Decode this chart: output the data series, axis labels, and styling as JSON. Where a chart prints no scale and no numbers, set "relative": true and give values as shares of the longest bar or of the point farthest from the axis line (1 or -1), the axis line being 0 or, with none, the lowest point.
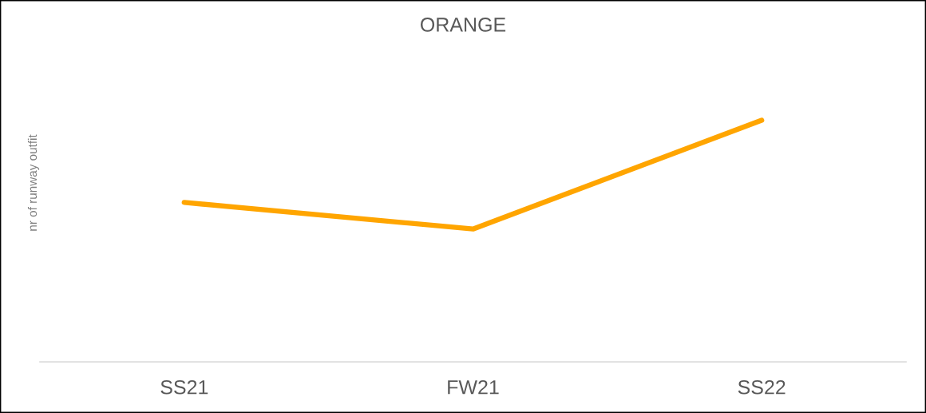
{
  "chart_data": {
    "type": "line",
    "title": "ORANGE",
    "ylabel": "nr of runway outfit",
    "categories": [
      "SS21",
      "FW21",
      "SS22"
    ],
    "relative": true,
    "series": [
      {
        "color": "#ffa500",
        "values": [
          0.66,
          0.55,
          1
        ]
      }
    ],
    "line_style": "solid"
  }
}
